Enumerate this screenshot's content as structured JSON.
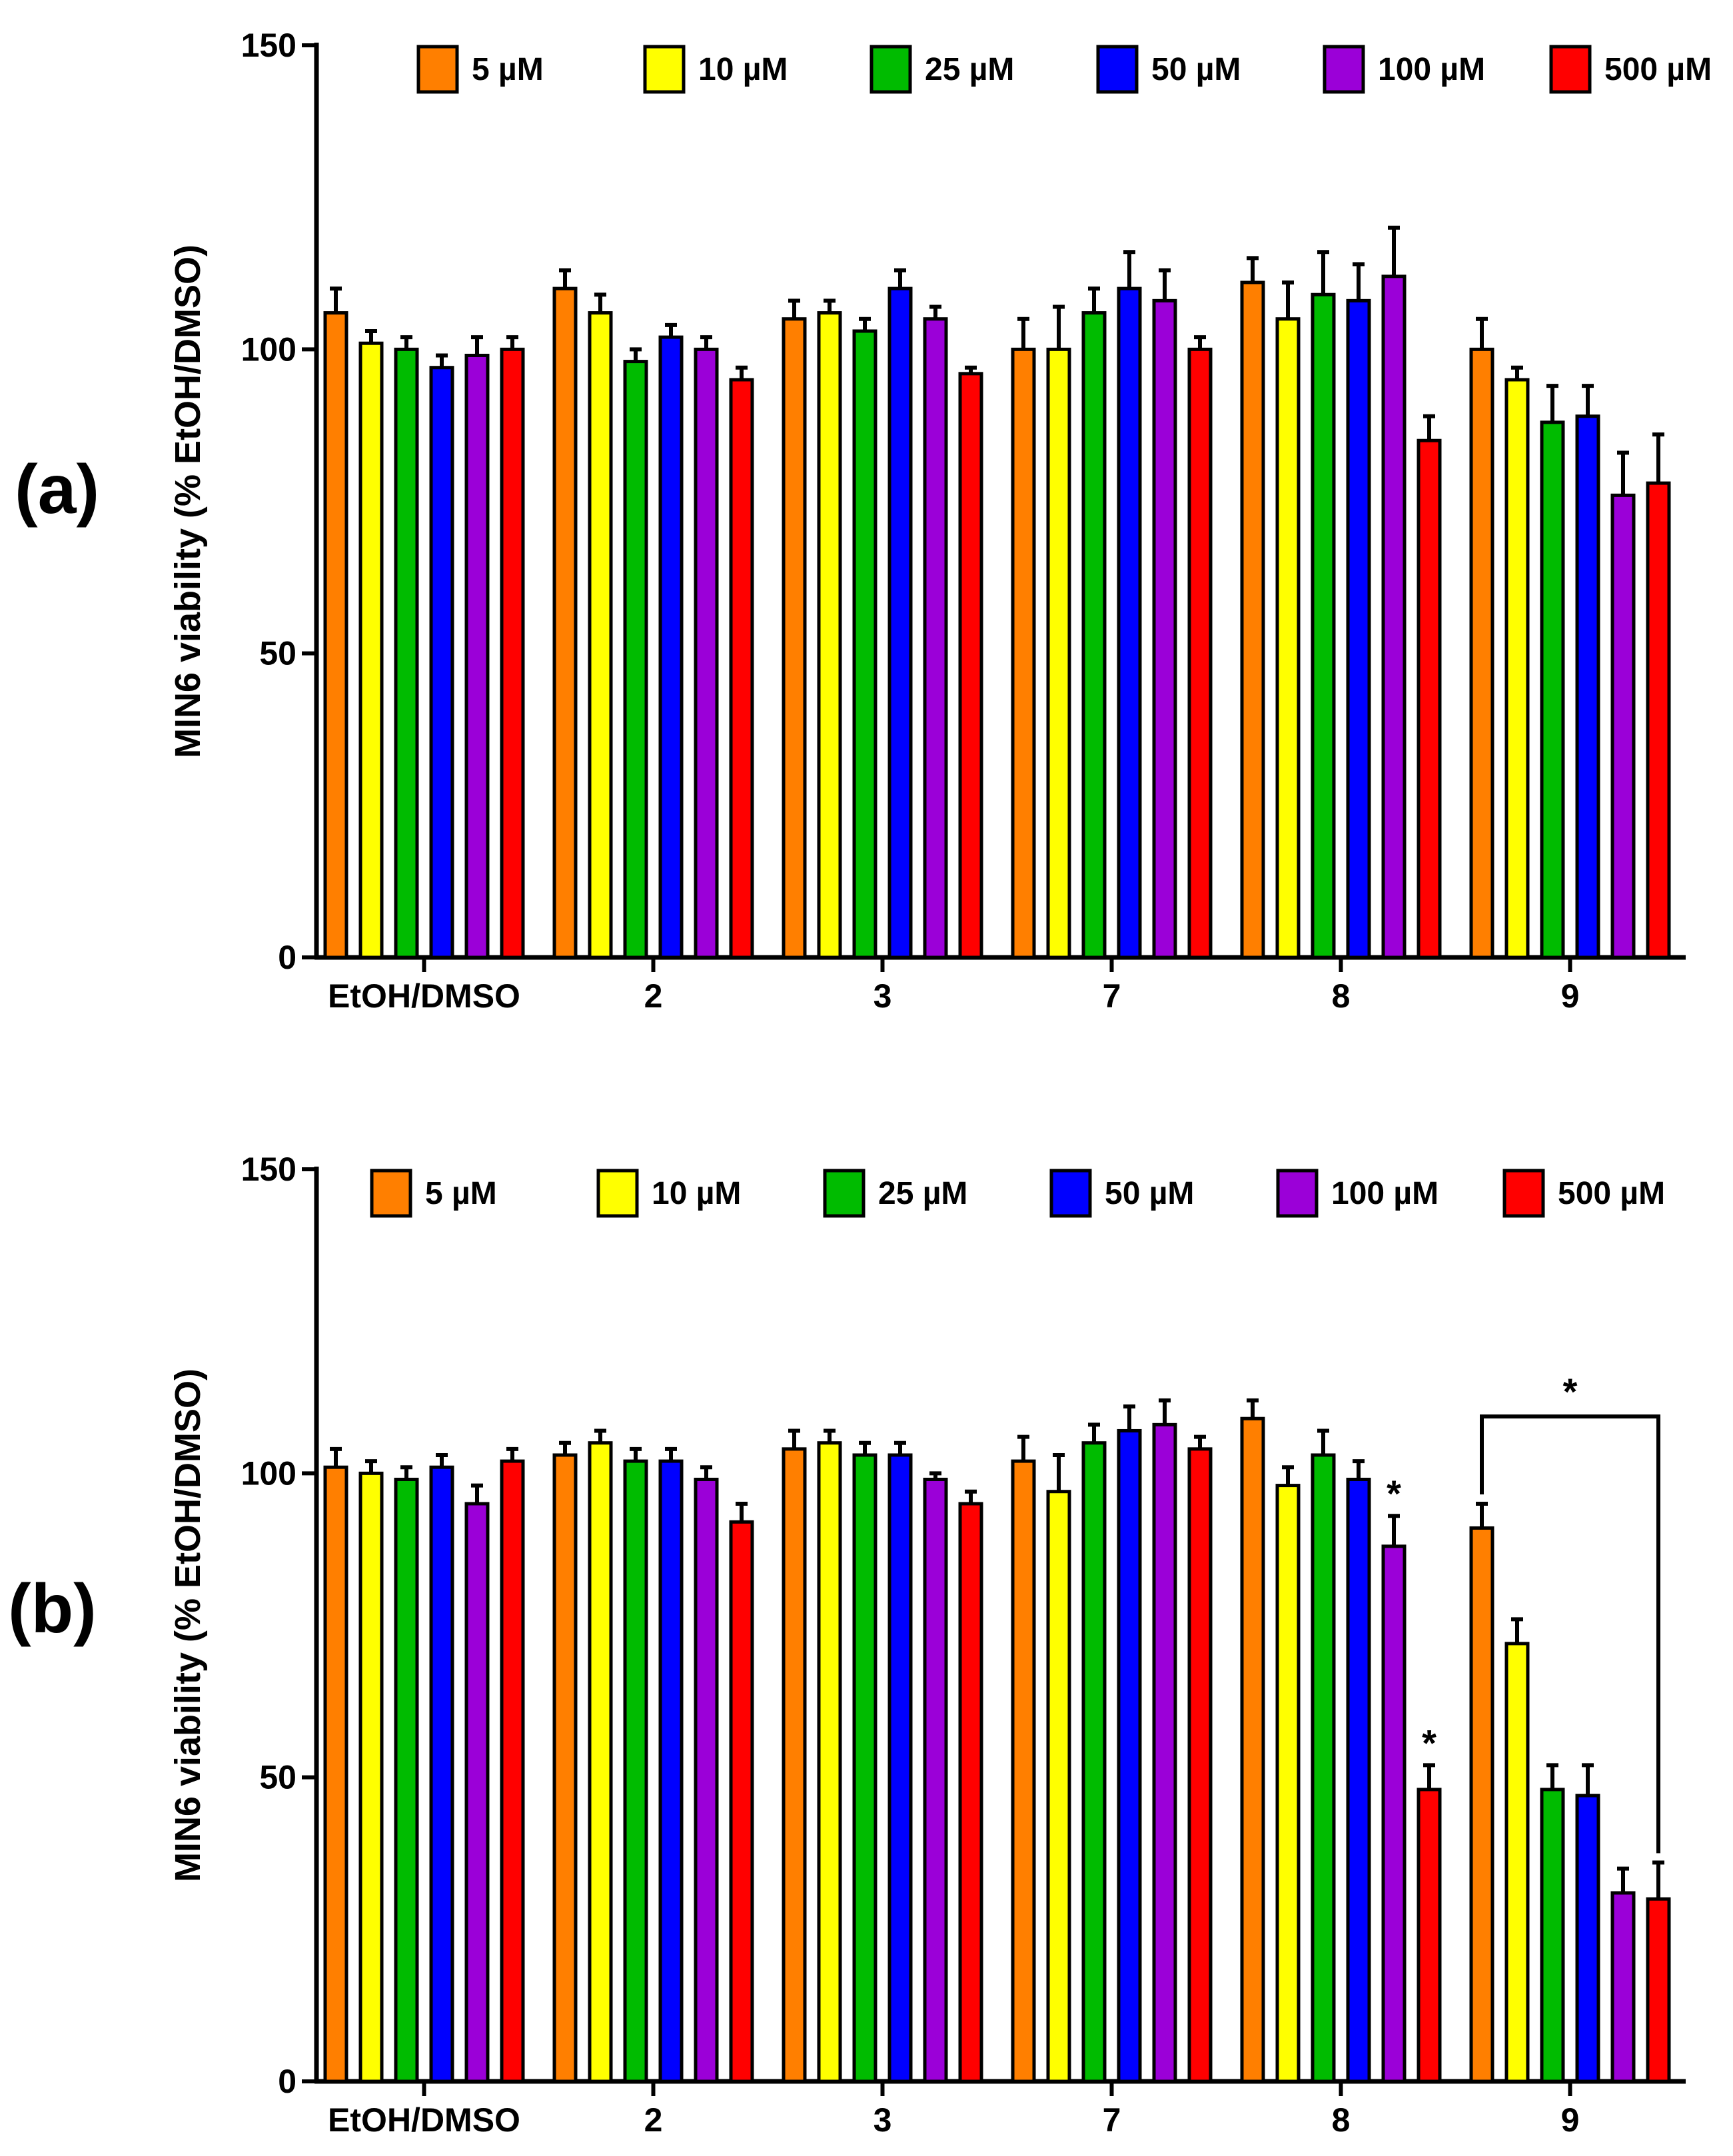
{
  "chart_data": [
    {
      "panel_label": "(a)",
      "type": "bar",
      "ylabel": "MIN6 viability (% EtOH/DMSO)",
      "ylim": [
        0,
        150
      ],
      "yticks": [
        "0",
        "50",
        "100",
        "150"
      ],
      "categories": [
        "EtOH/DMSO",
        "2",
        "3",
        "7",
        "8",
        "9"
      ],
      "series": [
        {
          "name": "5 µM",
          "color": "#ff7f00",
          "values": [
            106,
            110,
            105,
            100,
            111,
            100
          ],
          "errors": [
            4,
            3,
            3,
            5,
            4,
            5
          ]
        },
        {
          "name": "10 µM",
          "color": "#ffff00",
          "values": [
            101,
            106,
            106,
            100,
            105,
            95
          ],
          "errors": [
            2,
            3,
            2,
            7,
            6,
            2
          ]
        },
        {
          "name": "25 µM",
          "color": "#00bb00",
          "values": [
            100,
            98,
            103,
            106,
            109,
            88
          ],
          "errors": [
            2,
            2,
            2,
            4,
            7,
            6
          ]
        },
        {
          "name": "50 µM",
          "color": "#0000ff",
          "values": [
            97,
            102,
            110,
            110,
            108,
            89
          ],
          "errors": [
            2,
            2,
            3,
            6,
            6,
            5
          ]
        },
        {
          "name": "100 µM",
          "color": "#9b00d8",
          "values": [
            99,
            100,
            105,
            108,
            112,
            76
          ],
          "errors": [
            3,
            2,
            2,
            5,
            8,
            7
          ]
        },
        {
          "name": "500 µM",
          "color": "#ff0000",
          "values": [
            100,
            95,
            96,
            100,
            85,
            78
          ],
          "errors": [
            2,
            2,
            1,
            2,
            4,
            8
          ]
        }
      ],
      "significance": []
    },
    {
      "panel_label": "(b)",
      "type": "bar",
      "ylabel": "MIN6 viability (% EtOH/DMSO)",
      "ylim": [
        0,
        150
      ],
      "yticks": [
        "0",
        "50",
        "100",
        "150"
      ],
      "categories": [
        "EtOH/DMSO",
        "2",
        "3",
        "7",
        "8",
        "9"
      ],
      "series": [
        {
          "name": "5 µM",
          "color": "#ff7f00",
          "values": [
            101,
            103,
            104,
            102,
            109,
            91
          ],
          "errors": [
            3,
            2,
            3,
            4,
            3,
            4
          ]
        },
        {
          "name": "10 µM",
          "color": "#ffff00",
          "values": [
            100,
            105,
            105,
            97,
            98,
            72
          ],
          "errors": [
            2,
            2,
            2,
            6,
            3,
            4
          ]
        },
        {
          "name": "25 µM",
          "color": "#00bb00",
          "values": [
            99,
            102,
            103,
            105,
            103,
            48
          ],
          "errors": [
            2,
            2,
            2,
            3,
            4,
            4
          ]
        },
        {
          "name": "50 µM",
          "color": "#0000ff",
          "values": [
            101,
            102,
            103,
            107,
            99,
            47
          ],
          "errors": [
            2,
            2,
            2,
            4,
            3,
            5
          ]
        },
        {
          "name": "100 µM",
          "color": "#9b00d8",
          "values": [
            95,
            99,
            99,
            108,
            88,
            31
          ],
          "errors": [
            3,
            2,
            1,
            4,
            5,
            4
          ]
        },
        {
          "name": "500 µM",
          "color": "#ff0000",
          "values": [
            102,
            92,
            95,
            104,
            48,
            30
          ],
          "errors": [
            2,
            3,
            2,
            2,
            4,
            6
          ]
        }
      ],
      "significance": [
        {
          "type": "star",
          "category": 4,
          "series": 4,
          "text": "*"
        },
        {
          "type": "star",
          "category": 4,
          "series": 5,
          "text": "*"
        },
        {
          "type": "bracket",
          "category": 5,
          "from_series": 0,
          "to_series": 5,
          "text": "*"
        }
      ]
    }
  ]
}
